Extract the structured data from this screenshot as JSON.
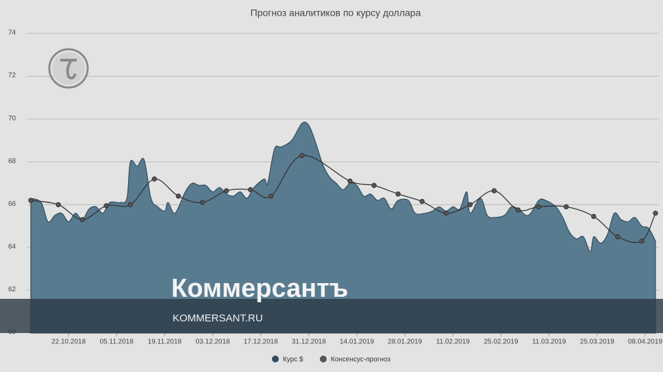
{
  "chart_data": {
    "type": "area-line",
    "title": "Прогноз аналитиков по курсу доллара",
    "ylim": [
      60,
      74
    ],
    "yticks": [
      60,
      62,
      64,
      66,
      68,
      70,
      72,
      74
    ],
    "xlim": [
      "10.10.2018",
      "12.04.2019"
    ],
    "xticks": [
      "22.10.2018",
      "05.11.2018",
      "19.11.2018",
      "03.12.2018",
      "17.12.2018",
      "31.12.2018",
      "14.01.2019",
      "28.01.2019",
      "11.02.2019",
      "25.02.2019",
      "11.03.2019",
      "25.03.2019",
      "08.04.2019"
    ],
    "grid": true,
    "legend": "bottom",
    "series": [
      {
        "name": "Курс $",
        "color": "#587b8f",
        "kind": "area",
        "x": [
          "11.10.2018",
          "14.10.2018",
          "16.10.2018",
          "18.10.2018",
          "20.10.2018",
          "22.10.2018",
          "24.10.2018",
          "26.10.2018",
          "28.10.2018",
          "30.10.2018",
          "01.11.2018",
          "03.11.2018",
          "06.11.2018",
          "08.11.2018",
          "09.11.2018",
          "11.11.2018",
          "13.11.2018",
          "15.11.2018",
          "17.11.2018",
          "19.11.2018",
          "20.11.2018",
          "22.11.2018",
          "25.11.2018",
          "27.11.2018",
          "29.11.2018",
          "01.12.2018",
          "03.12.2018",
          "05.12.2018",
          "07.12.2018",
          "09.12.2018",
          "11.12.2018",
          "13.12.2018",
          "15.12.2018",
          "18.12.2018",
          "19.12.2018",
          "21.12.2018",
          "23.12.2018",
          "26.12.2018",
          "29.12.2018",
          "31.12.2018",
          "02.01.2019",
          "04.01.2019",
          "06.01.2019",
          "08.01.2019",
          "10.01.2019",
          "12.01.2019",
          "14.01.2019",
          "16.01.2019",
          "18.01.2019",
          "20.01.2019",
          "22.01.2019",
          "24.01.2019",
          "26.01.2019",
          "29.01.2019",
          "31.01.2019",
          "03.02.2019",
          "05.02.2019",
          "07.02.2019",
          "09.02.2019",
          "11.02.2019",
          "13.02.2019",
          "15.02.2019",
          "16.02.2019",
          "19.02.2019",
          "21.02.2019",
          "23.02.2019",
          "26.02.2019",
          "28.02.2019",
          "02.03.2019",
          "05.03.2019",
          "08.03.2019",
          "10.03.2019",
          "13.03.2019",
          "15.03.2019",
          "17.03.2019",
          "19.03.2019",
          "21.03.2019",
          "23.03.2019",
          "24.03.2019",
          "26.03.2019",
          "28.03.2019",
          "30.03.2019",
          "01.04.2019",
          "03.04.2019",
          "05.04.2019",
          "07.04.2019",
          "09.04.2019",
          "11.04.2019"
        ],
        "values": [
          66.3,
          66.1,
          65.2,
          65.5,
          65.6,
          65.2,
          65.6,
          65.3,
          65.8,
          65.9,
          65.6,
          66.1,
          66.1,
          66.3,
          68.0,
          67.8,
          68.1,
          66.3,
          65.9,
          65.7,
          66.1,
          65.6,
          66.6,
          67.0,
          66.9,
          66.9,
          66.6,
          66.8,
          66.5,
          66.4,
          66.6,
          66.3,
          66.8,
          67.2,
          67.0,
          68.6,
          68.7,
          69.0,
          69.8,
          69.7,
          68.9,
          67.9,
          67.3,
          67.0,
          66.7,
          67.0,
          66.9,
          66.4,
          66.5,
          66.2,
          66.3,
          65.8,
          66.2,
          66.2,
          65.6,
          65.6,
          65.7,
          65.9,
          65.7,
          65.9,
          65.8,
          66.6,
          65.6,
          66.3,
          65.5,
          65.4,
          65.5,
          65.9,
          65.8,
          65.5,
          66.2,
          66.2,
          65.9,
          65.4,
          64.7,
          64.4,
          64.5,
          63.8,
          64.5,
          64.2,
          64.6,
          65.6,
          65.3,
          65.2,
          65.4,
          65.0,
          64.9,
          64.3
        ]
      },
      {
        "name": "Консенсус-прогноз",
        "color": "#333333",
        "kind": "line",
        "x": [
          "11.10.2018",
          "19.10.2018",
          "26.10.2018",
          "02.11.2018",
          "09.11.2018",
          "16.11.2018",
          "23.11.2018",
          "30.11.2018",
          "07.12.2018",
          "14.12.2018",
          "20.12.2018",
          "29.12.2018",
          "12.01.2019",
          "19.01.2019",
          "26.01.2019",
          "02.02.2019",
          "09.02.2019",
          "16.02.2019",
          "23.02.2019",
          "02.03.2019",
          "08.03.2019",
          "16.03.2019",
          "24.03.2019",
          "31.03.2019",
          "07.04.2019",
          "11.04.2019"
        ],
        "values": [
          66.2,
          66.0,
          65.3,
          65.95,
          66.0,
          67.2,
          66.4,
          66.1,
          66.65,
          66.7,
          66.4,
          68.3,
          67.1,
          66.9,
          66.5,
          66.15,
          65.6,
          66.0,
          66.65,
          65.75,
          65.9,
          65.9,
          65.45,
          64.5,
          64.3,
          65.6
        ]
      }
    ]
  },
  "watermark": {
    "brand": "Коммерсантъ",
    "site": "KOMMERSANT.RU"
  }
}
